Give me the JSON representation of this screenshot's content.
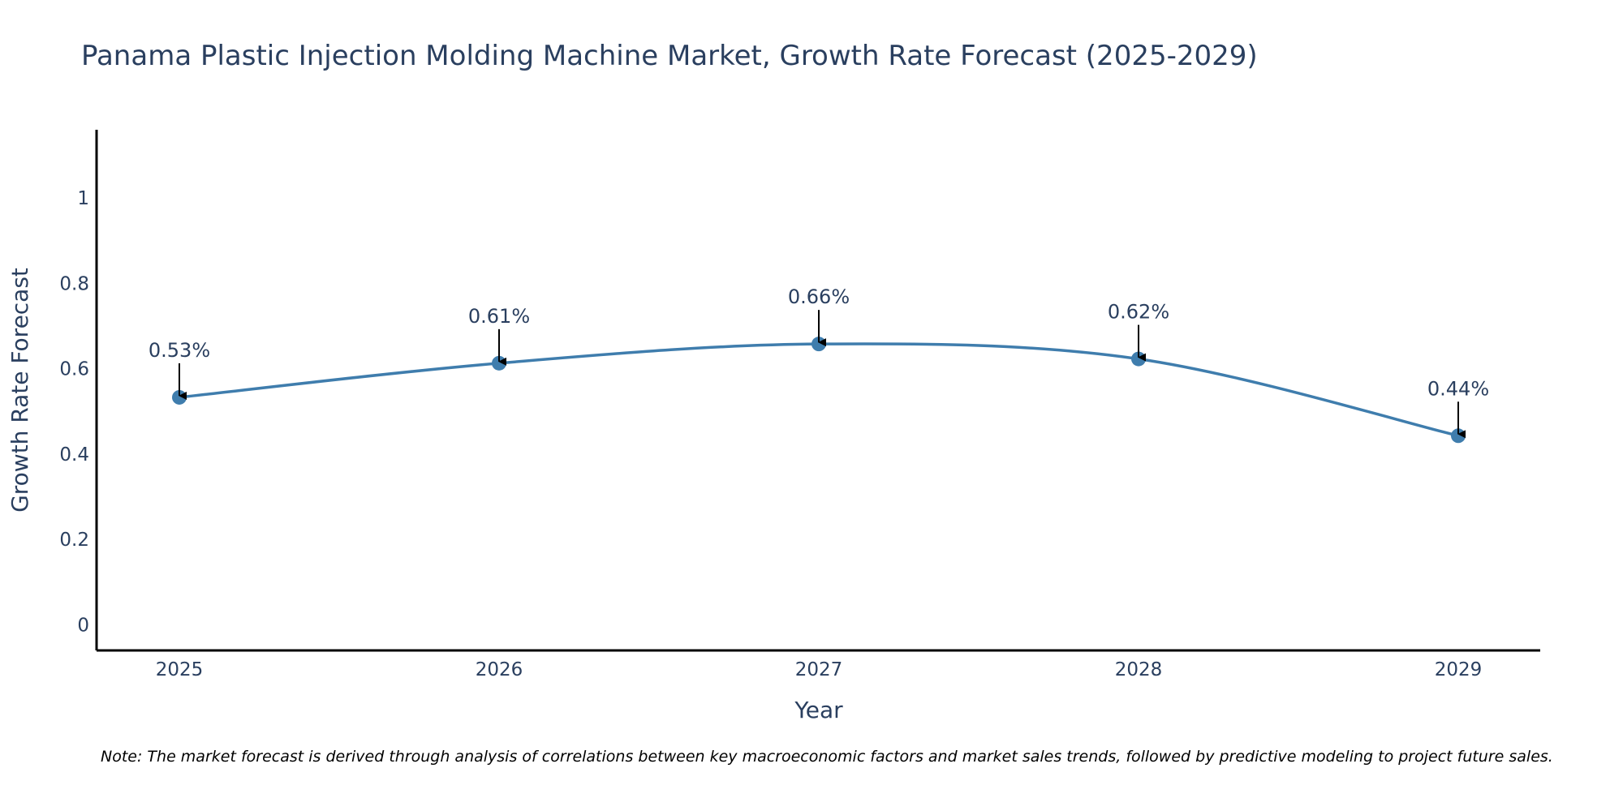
{
  "chart_data": {
    "type": "line",
    "title": "Panama Plastic Injection Molding Machine Market, Growth Rate Forecast (2025-2029)",
    "xlabel": "Year",
    "ylabel": "Growth Rate Forecast",
    "categories": [
      "2025",
      "2026",
      "2027",
      "2028",
      "2029"
    ],
    "series": [
      {
        "name": "Growth Rate Forecast",
        "values": [
          0.533,
          0.613,
          0.658,
          0.623,
          0.443
        ]
      }
    ],
    "data_labels": [
      "0.53%",
      "0.61%",
      "0.66%",
      "0.62%",
      "0.44%"
    ],
    "ylim": [
      -0.06,
      1.16
    ],
    "yticks": [
      0,
      0.2,
      0.4,
      0.6,
      0.8,
      1
    ],
    "ytick_labels": [
      "0",
      "0.2",
      "0.4",
      "0.6",
      "0.8",
      "1"
    ],
    "line_shape": "spline",
    "grid": false,
    "legend": "none",
    "colors": {
      "line": "#3f7dad",
      "marker": "#3f7dad",
      "arrow": "#000000",
      "text": "#2a3f5f"
    },
    "note": "Note: The market forecast is derived through analysis of correlations between key macroeconomic factors and market sales trends, followed by predictive modeling to project future sales."
  }
}
